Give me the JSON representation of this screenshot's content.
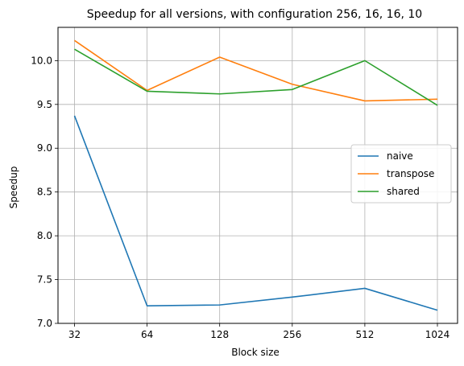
{
  "chart_data": {
    "type": "line",
    "title": "Speedup for all versions, with configuration 256, 16, 16, 10",
    "xlabel": "Block size",
    "ylabel": "Speedup",
    "categories": [
      "32",
      "64",
      "128",
      "256",
      "512",
      "1024"
    ],
    "ylim": [
      7.0,
      10.38
    ],
    "yticks": [
      "7.0",
      "7.5",
      "8.0",
      "8.5",
      "9.0",
      "9.5",
      "10.0"
    ],
    "grid": true,
    "legend_position": "center-right",
    "series": [
      {
        "name": "naive",
        "color": "#1f77b4",
        "values": [
          9.37,
          7.2,
          7.21,
          7.3,
          7.4,
          7.15
        ]
      },
      {
        "name": "transpose",
        "color": "#ff7f0e",
        "values": [
          10.23,
          9.66,
          10.04,
          9.73,
          9.54,
          9.56
        ]
      },
      {
        "name": "shared",
        "color": "#2ca02c",
        "values": [
          10.13,
          9.65,
          9.62,
          9.67,
          10.0,
          9.49
        ]
      }
    ]
  }
}
